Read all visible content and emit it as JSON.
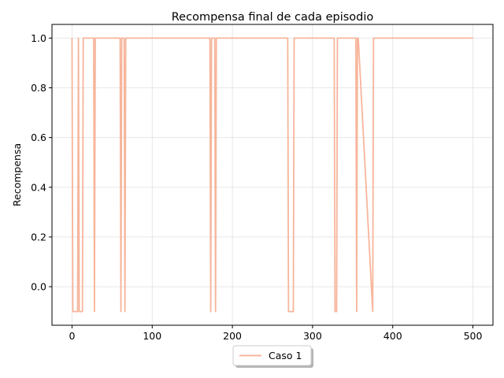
{
  "chart_data": {
    "type": "line",
    "title": "Recompensa final de cada episodio",
    "xlabel": "",
    "ylabel": "Recompensa",
    "xlim": [
      -25,
      525
    ],
    "ylim": [
      -0.155,
      1.055
    ],
    "x_ticks": [
      0,
      100,
      200,
      300,
      400,
      500
    ],
    "y_ticks": [
      -0.0,
      0.2,
      0.4,
      0.6,
      0.8,
      1.0
    ],
    "x_tick_labels": [
      "0",
      "100",
      "200",
      "300",
      "400",
      "500"
    ],
    "y_tick_labels": [
      "0.0",
      "0.2",
      "0.4",
      "0.6",
      "0.8",
      "1.0"
    ],
    "grid": true,
    "legend_position": "bottom-center",
    "series": [
      {
        "name": "Caso 1",
        "color": "#f7b59b",
        "x": [
          0,
          1,
          7,
          8,
          9,
          13,
          14,
          27,
          28,
          29,
          60,
          61,
          62,
          65,
          66,
          67,
          172,
          173,
          174,
          178,
          179,
          180,
          269,
          270,
          276,
          277,
          327,
          328,
          330,
          331,
          354,
          355,
          356,
          357,
          375,
          376,
          377,
          500
        ],
        "y": [
          1.0,
          -0.1,
          -0.1,
          1.0,
          -0.1,
          -0.1,
          1.0,
          1.0,
          -0.1,
          1.0,
          1.0,
          -0.1,
          1.0,
          1.0,
          -0.1,
          1.0,
          1.0,
          -0.1,
          1.0,
          1.0,
          -0.1,
          1.0,
          1.0,
          -0.1,
          -0.1,
          1.0,
          1.0,
          -0.1,
          -0.1,
          1.0,
          1.0,
          -0.1,
          1.0,
          1.0,
          -0.1,
          1.0,
          1.0,
          1.0
        ]
      }
    ]
  }
}
